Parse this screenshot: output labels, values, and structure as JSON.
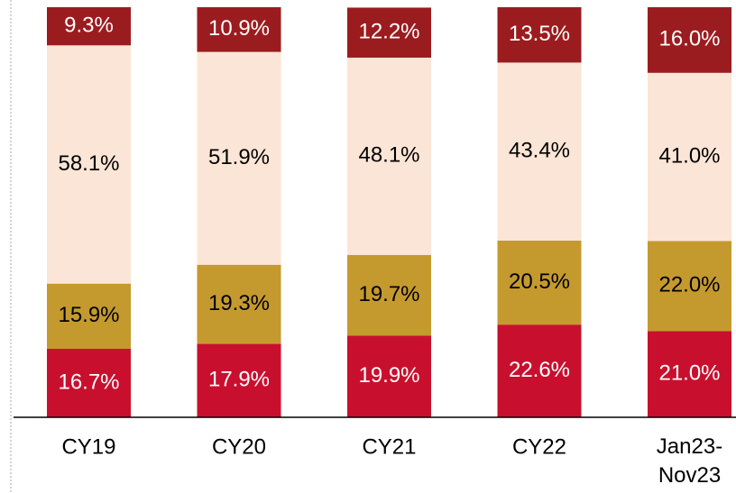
{
  "chart_data": {
    "type": "stacked_bar",
    "categories": [
      "CY19",
      "CY20",
      "CY21",
      "CY22",
      "Jan23-\nNov23"
    ],
    "series": [
      {
        "color": "#c8102e",
        "label_color": "#ffffff",
        "values": [
          16.7,
          17.9,
          19.9,
          22.6,
          21.0
        ],
        "value_labels": [
          "16.7%",
          "17.9%",
          "19.9%",
          "22.6%",
          "21.0%"
        ]
      },
      {
        "color": "#c49a2f",
        "label_color": "#000000",
        "values": [
          15.9,
          19.3,
          19.7,
          20.5,
          22.0
        ],
        "value_labels": [
          "15.9%",
          "19.3%",
          "19.7%",
          "20.5%",
          "22.0%"
        ]
      },
      {
        "color": "#fbe5d6",
        "label_color": "#000000",
        "values": [
          58.1,
          51.9,
          48.1,
          43.4,
          41.0
        ],
        "value_labels": [
          "58.1%",
          "51.9%",
          "48.1%",
          "43.4%",
          "41.0%"
        ]
      },
      {
        "color": "#9b1c1f",
        "label_color": "#ffffff",
        "values": [
          9.3,
          10.9,
          12.2,
          13.5,
          16.0
        ],
        "value_labels": [
          "9.3%",
          "10.9%",
          "12.2%",
          "13.5%",
          "16.0%"
        ]
      }
    ]
  }
}
